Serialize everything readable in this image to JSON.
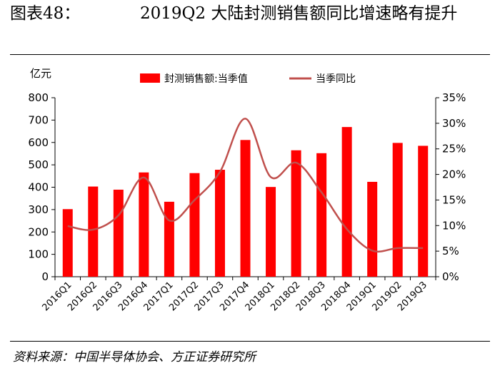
{
  "figure": {
    "label": "图表48：",
    "title": "2019Q2 大陆封测销售额同比增速略有提升",
    "source": "资料来源：中国半导体协会、方正证券研究所"
  },
  "chart_data": {
    "type": "bar",
    "categories": [
      "2016Q1",
      "2016Q2",
      "2016Q3",
      "2016Q4",
      "2017Q1",
      "2017Q2",
      "2017Q3",
      "2017Q4",
      "2018Q1",
      "2018Q2",
      "2018Q3",
      "2018Q4",
      "2019Q1",
      "2019Q2",
      "2019Q3"
    ],
    "series": [
      {
        "name": "封测销售额:当季值",
        "type": "bar",
        "axis": "left",
        "color": "#ff0000",
        "values": [
          302,
          403,
          389,
          466,
          335,
          463,
          478,
          611,
          401,
          565,
          552,
          669,
          424,
          598,
          585
        ]
      },
      {
        "name": "当季同比",
        "type": "line",
        "axis": "right",
        "color": "#c0504d",
        "values": [
          9.9,
          9.2,
          12.0,
          19.4,
          11.0,
          15.0,
          20.5,
          30.9,
          19.5,
          22.3,
          16.5,
          9.3,
          5.1,
          5.6,
          5.6
        ]
      }
    ],
    "yunit": "亿元",
    "ylim": [
      0,
      800
    ],
    "yticks": [
      "0",
      "100",
      "200",
      "300",
      "400",
      "500",
      "600",
      "700",
      "800"
    ],
    "y2lim": [
      0,
      35
    ],
    "y2ticks": [
      "0%",
      "5%",
      "10%",
      "15%",
      "20%",
      "25%",
      "30%",
      "35%"
    ],
    "legend": "top-center",
    "grid": false
  }
}
